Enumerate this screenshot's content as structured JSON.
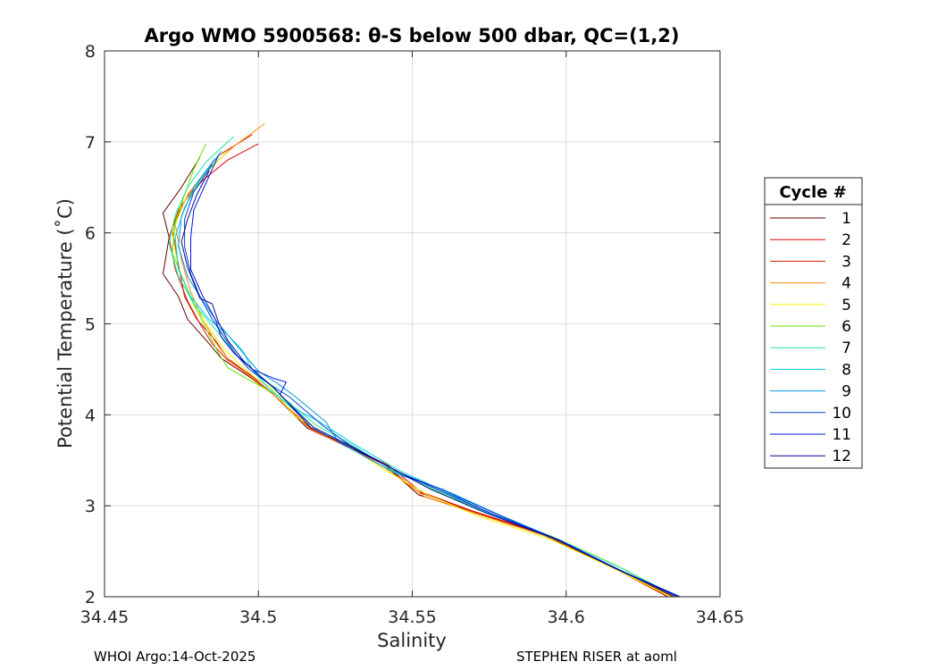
{
  "chart_data": {
    "type": "line",
    "title": "Argo WMO 5900568: θ-S below 500 dbar,  QC=(1,2)",
    "xlabel": "Salinity",
    "ylabel": "Potential Temperature (˚C)",
    "xlim": [
      34.45,
      34.65
    ],
    "ylim": [
      2,
      8
    ],
    "xticks": [
      "34.45",
      "34.5",
      "34.55",
      "34.6",
      "34.65"
    ],
    "yticks": [
      "2",
      "3",
      "4",
      "5",
      "6",
      "7",
      "8"
    ],
    "grid": true,
    "legend": {
      "title": "Cycle #",
      "placement": "outside-right"
    },
    "series": [
      {
        "name": "1",
        "color": "#6a0000",
        "points": [
          [
            34.481,
            6.83
          ],
          [
            34.475,
            6.5
          ],
          [
            34.469,
            6.22
          ],
          [
            34.471,
            5.95
          ],
          [
            34.469,
            5.55
          ],
          [
            34.474,
            5.3
          ],
          [
            34.477,
            5.05
          ],
          [
            34.483,
            4.82
          ],
          [
            34.488,
            4.62
          ],
          [
            34.497,
            4.42
          ],
          [
            34.505,
            4.22
          ],
          [
            34.516,
            3.85
          ],
          [
            34.527,
            3.68
          ],
          [
            34.54,
            3.48
          ],
          [
            34.552,
            3.12
          ],
          [
            34.568,
            2.95
          ],
          [
            34.59,
            2.72
          ],
          [
            34.61,
            2.4
          ],
          [
            34.635,
            2.0
          ]
        ]
      },
      {
        "name": "2",
        "color": "#e00000",
        "points": [
          [
            34.5,
            6.98
          ],
          [
            34.49,
            6.8
          ],
          [
            34.482,
            6.58
          ],
          [
            34.476,
            6.35
          ],
          [
            34.472,
            6.05
          ],
          [
            34.474,
            5.65
          ],
          [
            34.476,
            5.3
          ],
          [
            34.48,
            5.05
          ],
          [
            34.486,
            4.82
          ],
          [
            34.49,
            4.62
          ],
          [
            34.498,
            4.42
          ],
          [
            34.505,
            4.22
          ],
          [
            34.518,
            3.82
          ],
          [
            34.528,
            3.68
          ],
          [
            34.542,
            3.45
          ],
          [
            34.553,
            3.15
          ],
          [
            34.569,
            2.95
          ],
          [
            34.592,
            2.7
          ],
          [
            34.612,
            2.38
          ],
          [
            34.633,
            2.0
          ]
        ]
      },
      {
        "name": "3",
        "color": "#d21e00",
        "points": [
          [
            34.498,
            7.08
          ],
          [
            34.487,
            6.85
          ],
          [
            34.48,
            6.55
          ],
          [
            34.474,
            6.25
          ],
          [
            34.471,
            5.95
          ],
          [
            34.473,
            5.6
          ],
          [
            34.477,
            5.25
          ],
          [
            34.481,
            5.0
          ],
          [
            34.485,
            4.78
          ],
          [
            34.49,
            4.6
          ],
          [
            34.497,
            4.45
          ],
          [
            34.504,
            4.25
          ],
          [
            34.517,
            3.85
          ],
          [
            34.528,
            3.66
          ],
          [
            34.541,
            3.45
          ],
          [
            34.552,
            3.15
          ],
          [
            34.57,
            2.93
          ],
          [
            34.593,
            2.68
          ],
          [
            34.613,
            2.36
          ],
          [
            34.633,
            2.0
          ]
        ]
      },
      {
        "name": "4",
        "color": "#ff8a00",
        "points": [
          [
            34.502,
            7.2
          ],
          [
            34.492,
            6.95
          ],
          [
            34.483,
            6.68
          ],
          [
            34.477,
            6.42
          ],
          [
            34.473,
            6.1
          ],
          [
            34.475,
            5.7
          ],
          [
            34.478,
            5.35
          ],
          [
            34.482,
            5.05
          ],
          [
            34.486,
            4.8
          ],
          [
            34.491,
            4.58
          ],
          [
            34.497,
            4.43
          ],
          [
            34.505,
            4.22
          ],
          [
            34.517,
            3.84
          ],
          [
            34.529,
            3.65
          ],
          [
            34.541,
            3.42
          ],
          [
            34.554,
            3.1
          ],
          [
            34.572,
            2.9
          ],
          [
            34.594,
            2.66
          ],
          [
            34.614,
            2.35
          ],
          [
            34.634,
            2.0
          ]
        ]
      },
      {
        "name": "5",
        "color": "#f2f200",
        "points": [
          [
            34.49,
            6.9
          ],
          [
            34.482,
            6.62
          ],
          [
            34.476,
            6.35
          ],
          [
            34.472,
            6.0
          ],
          [
            34.474,
            5.6
          ],
          [
            34.479,
            5.2
          ],
          [
            34.484,
            4.95
          ],
          [
            34.489,
            4.72
          ],
          [
            34.494,
            4.55
          ],
          [
            34.5,
            4.38
          ],
          [
            34.504,
            4.3
          ],
          [
            34.512,
            3.98
          ],
          [
            34.527,
            3.7
          ],
          [
            34.54,
            3.42
          ],
          [
            34.555,
            3.12
          ],
          [
            34.572,
            2.88
          ],
          [
            34.595,
            2.63
          ],
          [
            34.615,
            2.32
          ],
          [
            34.634,
            2.0
          ]
        ]
      },
      {
        "name": "6",
        "color": "#66e600",
        "points": [
          [
            34.483,
            6.98
          ],
          [
            34.479,
            6.7
          ],
          [
            34.476,
            6.42
          ],
          [
            34.473,
            6.12
          ],
          [
            34.472,
            5.78
          ],
          [
            34.476,
            5.45
          ],
          [
            34.48,
            5.15
          ],
          [
            34.484,
            4.88
          ],
          [
            34.487,
            4.68
          ],
          [
            34.49,
            4.52
          ],
          [
            34.496,
            4.4
          ],
          [
            34.506,
            4.22
          ],
          [
            34.518,
            3.86
          ],
          [
            34.53,
            3.66
          ],
          [
            34.543,
            3.42
          ],
          [
            34.555,
            3.2
          ],
          [
            34.572,
            2.95
          ],
          [
            34.595,
            2.67
          ],
          [
            34.616,
            2.35
          ],
          [
            34.636,
            2.0
          ]
        ]
      },
      {
        "name": "7",
        "color": "#22e6a0",
        "points": [
          [
            34.492,
            7.06
          ],
          [
            34.483,
            6.78
          ],
          [
            34.477,
            6.5
          ],
          [
            34.473,
            6.2
          ],
          [
            34.471,
            5.88
          ],
          [
            34.474,
            5.52
          ],
          [
            34.479,
            5.22
          ],
          [
            34.485,
            4.98
          ],
          [
            34.49,
            4.78
          ],
          [
            34.494,
            4.62
          ],
          [
            34.5,
            4.45
          ],
          [
            34.507,
            4.22
          ],
          [
            34.519,
            3.88
          ],
          [
            34.53,
            3.68
          ],
          [
            34.544,
            3.38
          ],
          [
            34.557,
            3.18
          ],
          [
            34.574,
            2.93
          ],
          [
            34.596,
            2.65
          ],
          [
            34.617,
            2.33
          ],
          [
            34.636,
            2.0
          ]
        ]
      },
      {
        "name": "8",
        "color": "#00d2e6",
        "points": [
          [
            34.488,
            6.9
          ],
          [
            34.481,
            6.58
          ],
          [
            34.476,
            6.28
          ],
          [
            34.473,
            5.95
          ],
          [
            34.474,
            5.6
          ],
          [
            34.478,
            5.3
          ],
          [
            34.484,
            5.05
          ],
          [
            34.49,
            4.88
          ],
          [
            34.495,
            4.7
          ],
          [
            34.498,
            4.5
          ],
          [
            34.503,
            4.3
          ],
          [
            34.51,
            4.1
          ],
          [
            34.52,
            3.92
          ],
          [
            34.53,
            3.7
          ],
          [
            34.545,
            3.4
          ],
          [
            34.558,
            3.2
          ],
          [
            34.575,
            2.92
          ],
          [
            34.597,
            2.63
          ],
          [
            34.617,
            2.3
          ],
          [
            34.636,
            2.0
          ]
        ]
      },
      {
        "name": "9",
        "color": "#0096e6",
        "points": [
          [
            34.486,
            6.82
          ],
          [
            34.479,
            6.5
          ],
          [
            34.475,
            6.18
          ],
          [
            34.474,
            5.85
          ],
          [
            34.477,
            5.52
          ],
          [
            34.482,
            5.25
          ],
          [
            34.487,
            5.0
          ],
          [
            34.492,
            4.8
          ],
          [
            34.497,
            4.6
          ],
          [
            34.5,
            4.48
          ],
          [
            34.506,
            4.35
          ],
          [
            34.512,
            4.2
          ],
          [
            34.522,
            3.92
          ],
          [
            34.526,
            3.7
          ],
          [
            34.545,
            3.35
          ],
          [
            34.56,
            3.18
          ],
          [
            34.577,
            2.92
          ],
          [
            34.598,
            2.62
          ],
          [
            34.618,
            2.28
          ],
          [
            34.637,
            2.0
          ]
        ]
      },
      {
        "name": "10",
        "color": "#0046c8",
        "points": [
          [
            34.485,
            6.75
          ],
          [
            34.479,
            6.45
          ],
          [
            34.476,
            6.15
          ],
          [
            34.476,
            5.85
          ],
          [
            34.478,
            5.55
          ],
          [
            34.481,
            5.3
          ],
          [
            34.485,
            5.05
          ],
          [
            34.489,
            4.85
          ],
          [
            34.493,
            4.65
          ],
          [
            34.497,
            4.5
          ],
          [
            34.503,
            4.35
          ],
          [
            34.51,
            4.2
          ],
          [
            34.521,
            3.88
          ],
          [
            34.53,
            3.66
          ],
          [
            34.546,
            3.36
          ],
          [
            34.56,
            3.17
          ],
          [
            34.578,
            2.9
          ],
          [
            34.599,
            2.6
          ],
          [
            34.619,
            2.27
          ],
          [
            34.637,
            2.0
          ]
        ]
      },
      {
        "name": "11",
        "color": "#0010dc",
        "points": [
          [
            34.487,
            6.85
          ],
          [
            34.483,
            6.55
          ],
          [
            34.479,
            6.25
          ],
          [
            34.478,
            5.95
          ],
          [
            34.478,
            5.6
          ],
          [
            34.482,
            5.3
          ],
          [
            34.486,
            5.05
          ],
          [
            34.488,
            4.85
          ],
          [
            34.492,
            4.68
          ],
          [
            34.498,
            4.5
          ],
          [
            34.505,
            4.4
          ],
          [
            34.509,
            4.36
          ],
          [
            34.507,
            4.22
          ],
          [
            34.518,
            3.86
          ],
          [
            34.53,
            3.66
          ],
          [
            34.545,
            3.38
          ],
          [
            34.558,
            3.18
          ],
          [
            34.576,
            2.91
          ],
          [
            34.598,
            2.62
          ],
          [
            34.618,
            2.28
          ],
          [
            34.637,
            2.0
          ]
        ]
      },
      {
        "name": "12",
        "color": "#000a8c",
        "points": [
          [
            34.484,
            6.68
          ],
          [
            34.48,
            6.42
          ],
          [
            34.477,
            6.15
          ],
          [
            34.475,
            5.9
          ],
          [
            34.477,
            5.62
          ],
          [
            34.479,
            5.45
          ],
          [
            34.481,
            5.28
          ],
          [
            34.485,
            5.22
          ],
          [
            34.487,
            5.02
          ],
          [
            34.49,
            4.82
          ],
          [
            34.495,
            4.6
          ],
          [
            34.5,
            4.44
          ],
          [
            34.505,
            4.3
          ],
          [
            34.517,
            3.86
          ],
          [
            34.529,
            3.66
          ],
          [
            34.544,
            3.4
          ],
          [
            34.556,
            3.18
          ],
          [
            34.574,
            2.92
          ],
          [
            34.596,
            2.64
          ],
          [
            34.616,
            2.31
          ],
          [
            34.636,
            2.0
          ]
        ]
      }
    ]
  },
  "footer": {
    "left": "WHOI Argo:14-Oct-2025",
    "right": "STEPHEN RISER at aoml"
  }
}
